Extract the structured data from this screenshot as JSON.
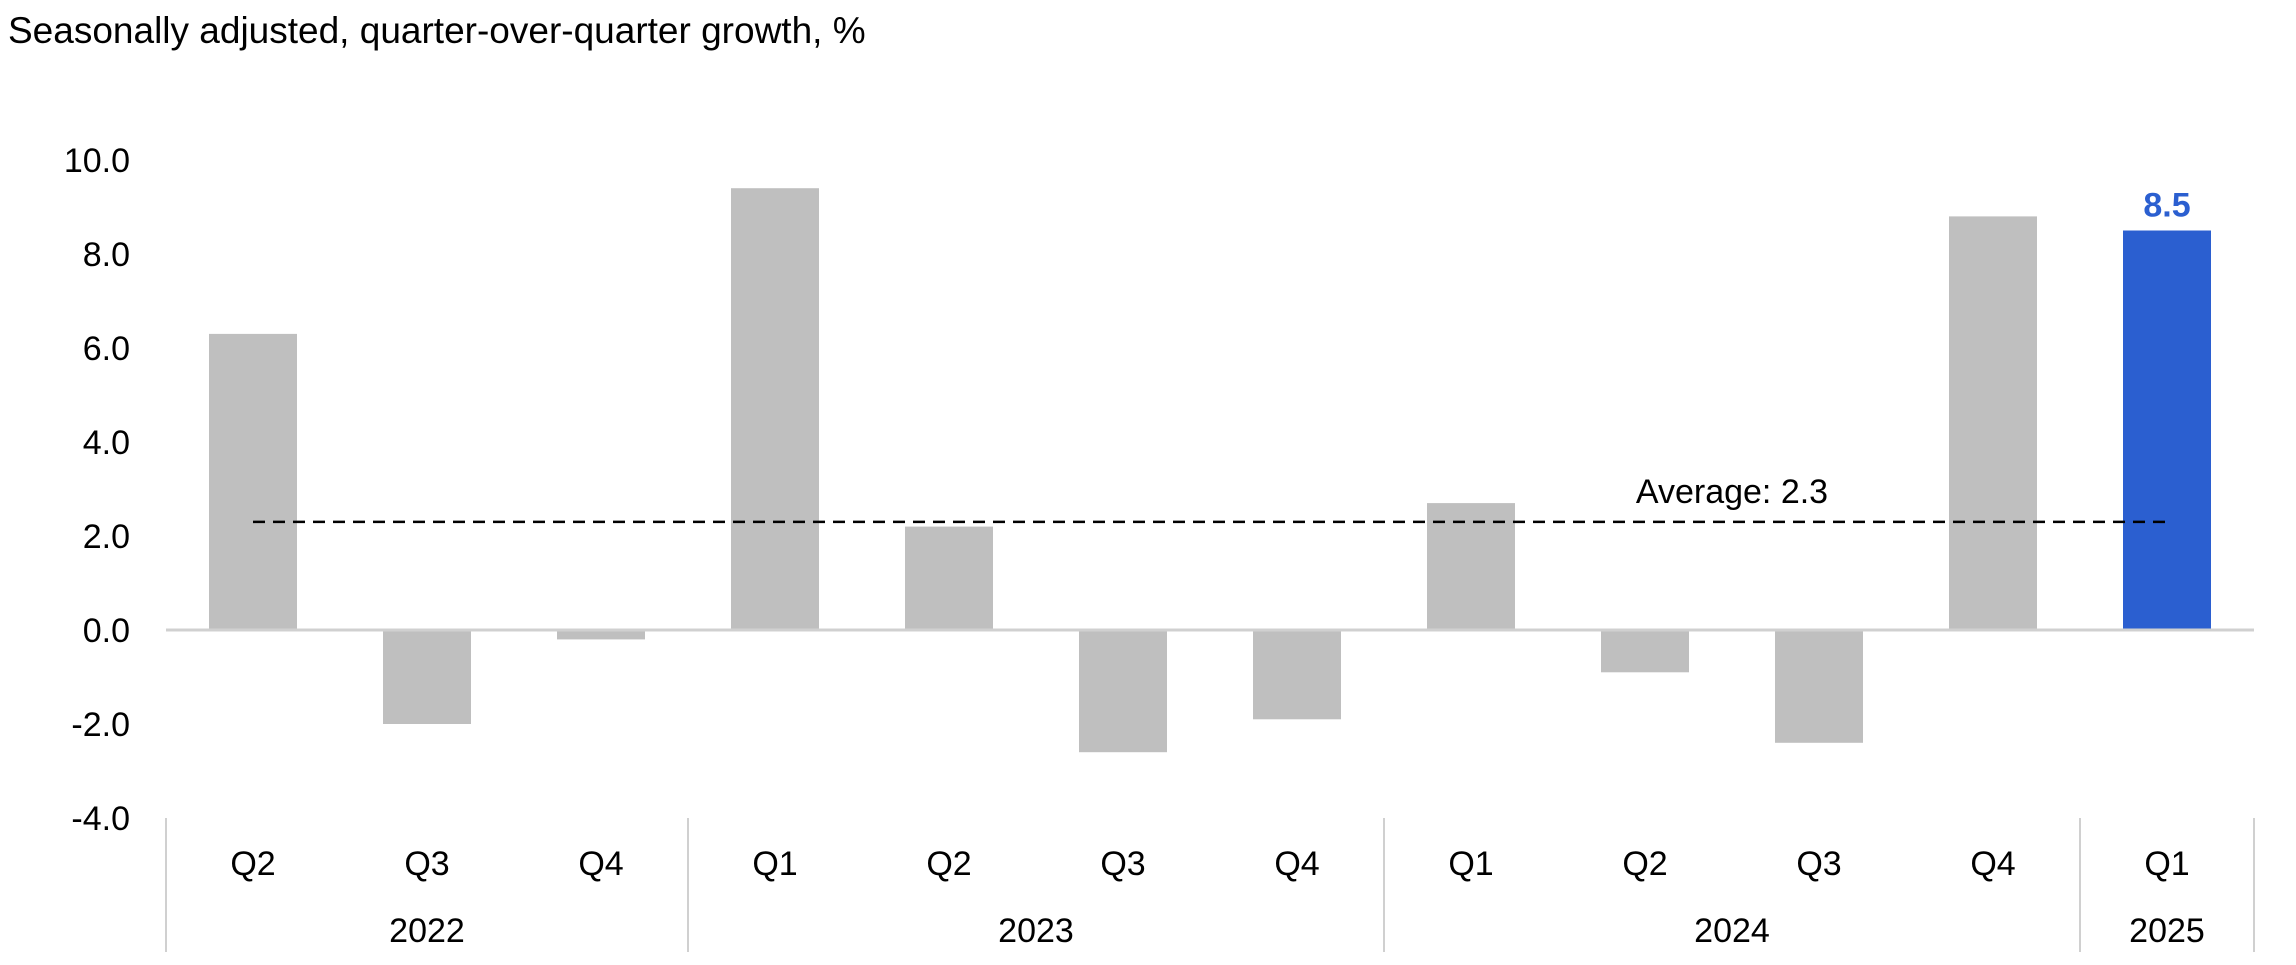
{
  "chart_data": {
    "type": "bar",
    "title": "Seasonally adjusted, quarter-over-quarter growth, %",
    "xlabel": "",
    "ylabel": "",
    "ylim": [
      -4.0,
      10.0
    ],
    "yticks": [
      -4.0,
      -2.0,
      0.0,
      2.0,
      4.0,
      6.0,
      8.0,
      10.0
    ],
    "categories": [
      "Q2",
      "Q3",
      "Q4",
      "Q1",
      "Q2",
      "Q3",
      "Q4",
      "Q1",
      "Q2",
      "Q3",
      "Q4",
      "Q1"
    ],
    "years": [
      {
        "label": "2022",
        "count": 3
      },
      {
        "label": "2023",
        "count": 4
      },
      {
        "label": "2024",
        "count": 4
      },
      {
        "label": "2025",
        "count": 1
      }
    ],
    "values": [
      6.3,
      -2.0,
      -0.2,
      9.4,
      2.2,
      -2.6,
      -1.9,
      2.7,
      -0.9,
      -2.4,
      8.8,
      8.5
    ],
    "highlight_index": 11,
    "highlight_label": "8.5",
    "average": {
      "value": 2.3,
      "label": "Average:  2.3"
    },
    "grid": false,
    "colors": {
      "bar": "#bfbfbf",
      "highlight": "#2b5fd0",
      "axis": "#d0d0d0",
      "average_line": "#000000"
    }
  }
}
